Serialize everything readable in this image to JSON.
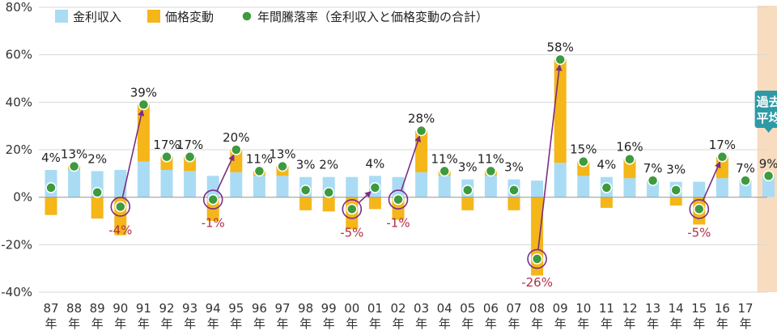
{
  "chart_data": {
    "type": "bar",
    "title": "",
    "xlabel": "",
    "ylabel": "",
    "ylim": [
      -40,
      80
    ],
    "y_ticks": [
      "80%",
      "60%",
      "40%",
      "20%",
      "0%",
      "-20%",
      "-40%"
    ],
    "y_tick_values": [
      80,
      60,
      40,
      20,
      0,
      -20,
      -40
    ],
    "grid": true,
    "stacked": true,
    "legend_position": "top-left",
    "categories_top": [
      "87",
      "88",
      "89",
      "90",
      "91",
      "92",
      "93",
      "94",
      "95",
      "96",
      "97",
      "98",
      "99",
      "00",
      "01",
      "02",
      "03",
      "04",
      "05",
      "06",
      "07",
      "08",
      "09",
      "10",
      "11",
      "12",
      "13",
      "14",
      "15",
      "16",
      "17"
    ],
    "categories_bottom": "年",
    "series": [
      {
        "name": "金利収入",
        "kind": "bar",
        "values": [
          11.5,
          11.5,
          11,
          11.5,
          15,
          11.5,
          11,
          9,
          10.5,
          9,
          9,
          8.5,
          8.5,
          8.5,
          9,
          8.5,
          10.5,
          9,
          7.5,
          9,
          7.5,
          7,
          14.5,
          9,
          8.5,
          8,
          7,
          6.5,
          6.5,
          8,
          6.5,
          9
        ]
      },
      {
        "name": "価格変動",
        "kind": "bar",
        "values": [
          -7.5,
          1.5,
          -9,
          -16,
          24,
          5.5,
          6,
          -10,
          9.5,
          2,
          4,
          -5.5,
          -6,
          -13.5,
          -5,
          -9.5,
          17.5,
          2,
          -5.5,
          2,
          -5.5,
          -33,
          43.5,
          6,
          -4.5,
          8,
          0,
          -3.5,
          -11.5,
          9,
          0.5,
          0
        ]
      },
      {
        "name": "年間騰落率（金利収入と価格変動の合計）",
        "kind": "marker",
        "values": [
          4,
          13,
          2,
          -4,
          39,
          17,
          17,
          -1,
          20,
          11,
          13,
          3,
          2,
          -5,
          4,
          -1,
          28,
          11,
          3,
          11,
          3,
          -26,
          58,
          15,
          4,
          16,
          7,
          3,
          -5,
          17,
          7,
          9
        ]
      }
    ],
    "data_labels": [
      "4%",
      "13%",
      "2%",
      "-4%",
      "39%",
      "17%",
      "17%",
      "-1%",
      "20%",
      "11%",
      "13%",
      "3%",
      "2%",
      "-5%",
      "4%",
      "-1%",
      "28%",
      "11%",
      "3%",
      "11%",
      "3%",
      "-26%",
      "58%",
      "15%",
      "4%",
      "16%",
      "7%",
      "3%",
      "-5%",
      "17%",
      "7%",
      "9%"
    ],
    "highlighted_negative_indices": [
      3,
      7,
      13,
      15,
      21,
      28
    ],
    "rebound_arrows": [
      [
        3,
        4
      ],
      [
        7,
        8
      ],
      [
        13,
        14
      ],
      [
        15,
        16
      ],
      [
        21,
        22
      ],
      [
        28,
        29
      ]
    ],
    "average_label": [
      "過去",
      "平均"
    ],
    "colors": {
      "interest": "#a9dcf4",
      "price": "#f4b619",
      "marker": "#3e9a3e",
      "marker_stroke": "#ffffff",
      "grid": "#d7d7d7",
      "zero_line": "#a0a0a0",
      "arrow": "#7b2d86",
      "neg_label": "#b03048",
      "avg_band": "#f8dcc0",
      "avg_badge": "#2e9aa6"
    }
  }
}
